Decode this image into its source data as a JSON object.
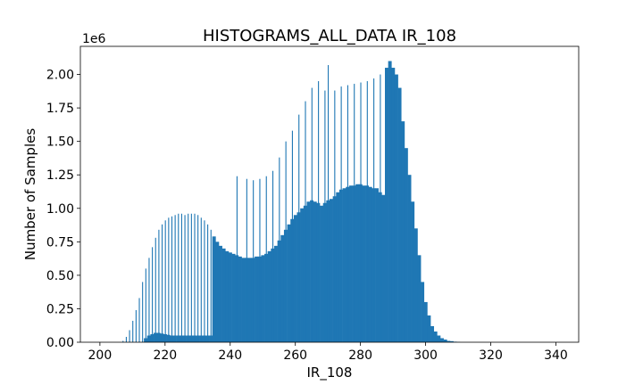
{
  "chart_data": {
    "type": "bar",
    "title": "HISTOGRAMS_ALL_DATA IR_108",
    "xlabel": "IR_108",
    "ylabel": "Number of Samples",
    "y_offset_label": "1e6",
    "xlim": [
      194,
      347
    ],
    "ylim": [
      0,
      2.21
    ],
    "x_ticks": [
      200,
      220,
      240,
      260,
      280,
      300,
      320,
      340
    ],
    "x_tick_labels": [
      "200",
      "220",
      "240",
      "260",
      "280",
      "300",
      "320",
      "340"
    ],
    "y_ticks": [
      0,
      0.25,
      0.5,
      0.75,
      1.0,
      1.25,
      1.5,
      1.75,
      2.0
    ],
    "y_tick_labels": [
      "0.00",
      "0.25",
      "0.50",
      "0.75",
      "1.00",
      "1.25",
      "1.50",
      "1.75",
      "2.00"
    ],
    "bar_color": "#1f77b4",
    "series": [
      {
        "name": "",
        "x": [
          207,
          208,
          209,
          210,
          211,
          212,
          213,
          214,
          215,
          216,
          217,
          218,
          219,
          220,
          221,
          222,
          223,
          224,
          225,
          226,
          227,
          228,
          229,
          230,
          231,
          232,
          233,
          234,
          235,
          236,
          237,
          238,
          239,
          240,
          241,
          242,
          243,
          244,
          245,
          246,
          247,
          248,
          249,
          250,
          251,
          252,
          253,
          254,
          255,
          256,
          257,
          258,
          259,
          260,
          261,
          262,
          263,
          264,
          265,
          266,
          267,
          268,
          269,
          270,
          271,
          272,
          273,
          274,
          275,
          276,
          277,
          278,
          279,
          280,
          281,
          282,
          283,
          284,
          285,
          286,
          287,
          288,
          289,
          290,
          291,
          292,
          293,
          294,
          295,
          296,
          297,
          298,
          299,
          300,
          301,
          302,
          303,
          304,
          305,
          306,
          307,
          308,
          309,
          310
        ],
        "values": [
          0.01,
          0.04,
          0.09,
          0.16,
          0.24,
          0.33,
          0.45,
          0.55,
          0.63,
          0.71,
          0.78,
          0.84,
          0.88,
          0.91,
          0.93,
          0.94,
          0.95,
          0.96,
          0.96,
          0.95,
          0.96,
          0.96,
          0.96,
          0.95,
          0.93,
          0.91,
          0.88,
          0.84,
          0.79,
          0.75,
          0.72,
          0.7,
          0.68,
          0.67,
          0.66,
          1.24,
          0.64,
          0.63,
          1.22,
          0.63,
          1.21,
          0.64,
          1.22,
          0.65,
          1.24,
          0.68,
          1.28,
          0.72,
          1.38,
          0.8,
          1.5,
          0.88,
          1.58,
          0.95,
          1.7,
          1.0,
          1.8,
          1.05,
          1.9,
          1.05,
          1.95,
          1.02,
          1.88,
          2.07,
          1.07,
          1.88,
          1.12,
          1.91,
          1.15,
          1.92,
          1.17,
          1.93,
          1.18,
          1.94,
          1.17,
          1.95,
          1.16,
          1.97,
          1.15,
          2.0,
          1.1,
          2.05,
          2.1,
          2.05,
          2.0,
          1.9,
          1.65,
          1.45,
          1.25,
          1.05,
          0.85,
          0.65,
          0.45,
          0.3,
          0.2,
          0.12,
          0.08,
          0.05,
          0.03,
          0.02,
          0.01,
          0.008,
          0.004,
          0.002
        ],
        "base_values": [
          0.0,
          0.0,
          0.0,
          0.0,
          0.0,
          0.0,
          0.0,
          0.03,
          0.05,
          0.06,
          0.07,
          0.07,
          0.065,
          0.06,
          0.055,
          0.05,
          0.05,
          0.05,
          0.05,
          0.05,
          0.05,
          0.05,
          0.05,
          0.05,
          0.05,
          0.05,
          0.05,
          0.05,
          0.79,
          0.75,
          0.72,
          0.7,
          0.68,
          0.67,
          0.66,
          0.65,
          0.64,
          0.63,
          0.63,
          0.63,
          0.63,
          0.64,
          0.64,
          0.65,
          0.66,
          0.68,
          0.7,
          0.72,
          0.76,
          0.8,
          0.84,
          0.88,
          0.92,
          0.95,
          0.97,
          1.0,
          1.02,
          1.05,
          1.06,
          1.05,
          1.04,
          1.02,
          1.04,
          1.06,
          1.07,
          1.09,
          1.12,
          1.14,
          1.15,
          1.16,
          1.17,
          1.17,
          1.18,
          1.18,
          1.17,
          1.17,
          1.16,
          1.15,
          1.15,
          1.12,
          1.1,
          2.05,
          2.1,
          2.05,
          2.0,
          1.9,
          1.65,
          1.45,
          1.25,
          1.05,
          0.85,
          0.65,
          0.45,
          0.3,
          0.2,
          0.12,
          0.08,
          0.05,
          0.03,
          0.02,
          0.01,
          0.008,
          0.004,
          0.002
        ]
      }
    ],
    "grid": false,
    "legend": "none"
  }
}
